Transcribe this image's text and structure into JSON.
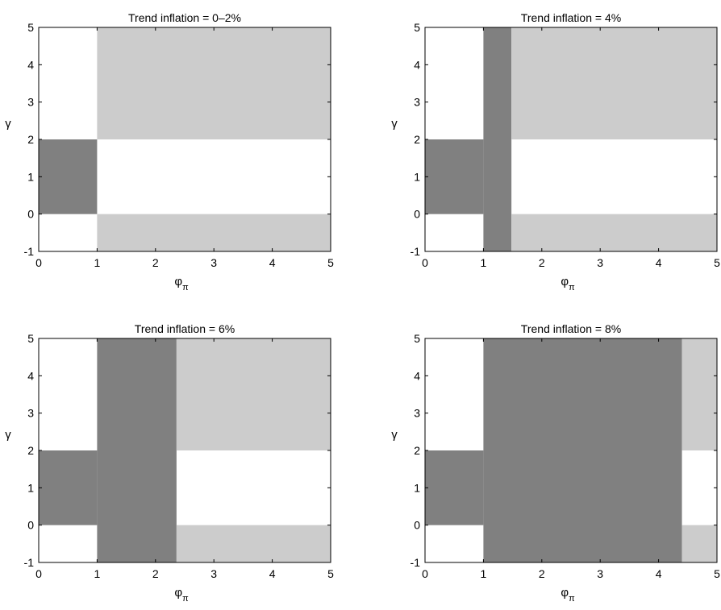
{
  "figure": {
    "colors": {
      "dark_region": "#808080",
      "light_region": "#cccccc",
      "background": "#ffffff",
      "axes": "#000000"
    }
  },
  "chart_data": [
    {
      "type": "heatmap",
      "title": "Trend inflation = 0–2%",
      "xlabel": {
        "main": "φ",
        "sub": "π"
      },
      "ylabel": "γ",
      "xlim": [
        0,
        5
      ],
      "ylim": [
        -1,
        5
      ],
      "xticks": [
        0,
        1,
        2,
        3,
        4,
        5
      ],
      "yticks": [
        -1,
        0,
        1,
        2,
        3,
        4,
        5
      ],
      "regions": [
        {
          "shade": "dark",
          "x": [
            0,
            1
          ],
          "y": [
            0,
            2
          ]
        },
        {
          "shade": "light",
          "x": [
            1,
            5
          ],
          "y": [
            2,
            5
          ]
        },
        {
          "shade": "light",
          "x": [
            1,
            5
          ],
          "y": [
            -1,
            0
          ]
        }
      ]
    },
    {
      "type": "heatmap",
      "title": "Trend inflation = 4%",
      "xlabel": {
        "main": "φ",
        "sub": "π"
      },
      "ylabel": "γ",
      "xlim": [
        0,
        5
      ],
      "ylim": [
        -1,
        5
      ],
      "xticks": [
        0,
        1,
        2,
        3,
        4,
        5
      ],
      "yticks": [
        -1,
        0,
        1,
        2,
        3,
        4,
        5
      ],
      "regions": [
        {
          "shade": "dark",
          "x": [
            0,
            1
          ],
          "y": [
            0,
            2
          ]
        },
        {
          "shade": "dark",
          "x": [
            1,
            1.48
          ],
          "y": [
            -1,
            5
          ]
        },
        {
          "shade": "light",
          "x": [
            1.48,
            5
          ],
          "y": [
            2,
            5
          ]
        },
        {
          "shade": "light",
          "x": [
            1.48,
            5
          ],
          "y": [
            -1,
            0
          ]
        }
      ]
    },
    {
      "type": "heatmap",
      "title": "Trend inflation = 6%",
      "xlabel": {
        "main": "φ",
        "sub": "π"
      },
      "ylabel": "γ",
      "xlim": [
        0,
        5
      ],
      "ylim": [
        -1,
        5
      ],
      "xticks": [
        0,
        1,
        2,
        3,
        4,
        5
      ],
      "yticks": [
        -1,
        0,
        1,
        2,
        3,
        4,
        5
      ],
      "regions": [
        {
          "shade": "dark",
          "x": [
            0,
            1
          ],
          "y": [
            0,
            2
          ]
        },
        {
          "shade": "dark",
          "x": [
            1,
            2.36
          ],
          "y": [
            -1,
            5
          ]
        },
        {
          "shade": "light",
          "x": [
            2.36,
            5
          ],
          "y": [
            2,
            5
          ]
        },
        {
          "shade": "light",
          "x": [
            2.36,
            5
          ],
          "y": [
            -1,
            0
          ]
        }
      ]
    },
    {
      "type": "heatmap",
      "title": "Trend inflation = 8%",
      "xlabel": {
        "main": "φ",
        "sub": "π"
      },
      "ylabel": "γ",
      "xlim": [
        0,
        5
      ],
      "ylim": [
        -1,
        5
      ],
      "xticks": [
        0,
        1,
        2,
        3,
        4,
        5
      ],
      "yticks": [
        -1,
        0,
        1,
        2,
        3,
        4,
        5
      ],
      "regions": [
        {
          "shade": "dark",
          "x": [
            0,
            1
          ],
          "y": [
            0,
            2
          ]
        },
        {
          "shade": "dark",
          "x": [
            1,
            4.4
          ],
          "y": [
            -1,
            5
          ]
        },
        {
          "shade": "light",
          "x": [
            4.4,
            5
          ],
          "y": [
            2,
            5
          ]
        },
        {
          "shade": "light",
          "x": [
            4.4,
            5
          ],
          "y": [
            -1,
            0
          ]
        }
      ]
    }
  ]
}
